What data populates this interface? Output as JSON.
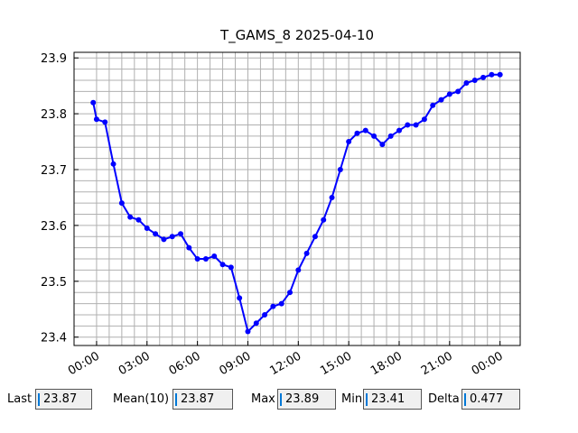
{
  "chart_data": {
    "type": "line",
    "title": "T_GAMS_8 2025-04-10",
    "x": [
      -0.2,
      0.0,
      0.5,
      1.0,
      1.5,
      2.0,
      2.5,
      3.0,
      3.5,
      4.0,
      4.5,
      5.0,
      5.5,
      6.0,
      6.5,
      7.0,
      7.5,
      8.0,
      8.5,
      9.0,
      9.5,
      10.0,
      10.5,
      11.0,
      11.5,
      12.0,
      12.5,
      13.0,
      13.5,
      14.0,
      14.5,
      15.0,
      15.5,
      16.0,
      16.5,
      17.0,
      17.5,
      18.0,
      18.5,
      19.0,
      19.5,
      20.0,
      20.5,
      21.0,
      21.5,
      22.0,
      22.5,
      23.0,
      23.5,
      24.0
    ],
    "series": [
      {
        "color": "#0000ff",
        "values": [
          23.82,
          23.79,
          23.785,
          23.71,
          23.64,
          23.615,
          23.61,
          23.595,
          23.585,
          23.575,
          23.58,
          23.585,
          23.56,
          23.54,
          23.54,
          23.545,
          23.53,
          23.525,
          23.47,
          23.41,
          23.425,
          23.44,
          23.455,
          23.46,
          23.48,
          23.52,
          23.55,
          23.58,
          23.61,
          23.65,
          23.7,
          23.75,
          23.765,
          23.77,
          23.76,
          23.745,
          23.76,
          23.77,
          23.78,
          23.78,
          23.79,
          23.815,
          23.825,
          23.835,
          23.84,
          23.855,
          23.86,
          23.865,
          23.87,
          23.87
        ]
      }
    ],
    "xlim": [
      -1.34,
      25.2
    ],
    "ylim": [
      23.385,
      23.91
    ],
    "xticks": [
      {
        "value": 0,
        "label": "00:00"
      },
      {
        "value": 3,
        "label": "03:00"
      },
      {
        "value": 6,
        "label": "06:00"
      },
      {
        "value": 9,
        "label": "09:00"
      },
      {
        "value": 12,
        "label": "12:00"
      },
      {
        "value": 15,
        "label": "15:00"
      },
      {
        "value": 18,
        "label": "18:00"
      },
      {
        "value": 21,
        "label": "21:00"
      },
      {
        "value": 24,
        "label": "00:00"
      }
    ],
    "yticks": [
      23.4,
      23.5,
      23.6,
      23.7,
      23.8,
      23.9
    ],
    "grid": true
  },
  "stats": [
    {
      "label": "Last",
      "value": 23.87
    },
    {
      "label": "Mean(10)",
      "value": 23.87
    },
    {
      "label": "Max",
      "value": 23.89
    },
    {
      "label": "Min",
      "value": 23.41
    },
    {
      "label": "Delta",
      "value": 0.477
    }
  ]
}
